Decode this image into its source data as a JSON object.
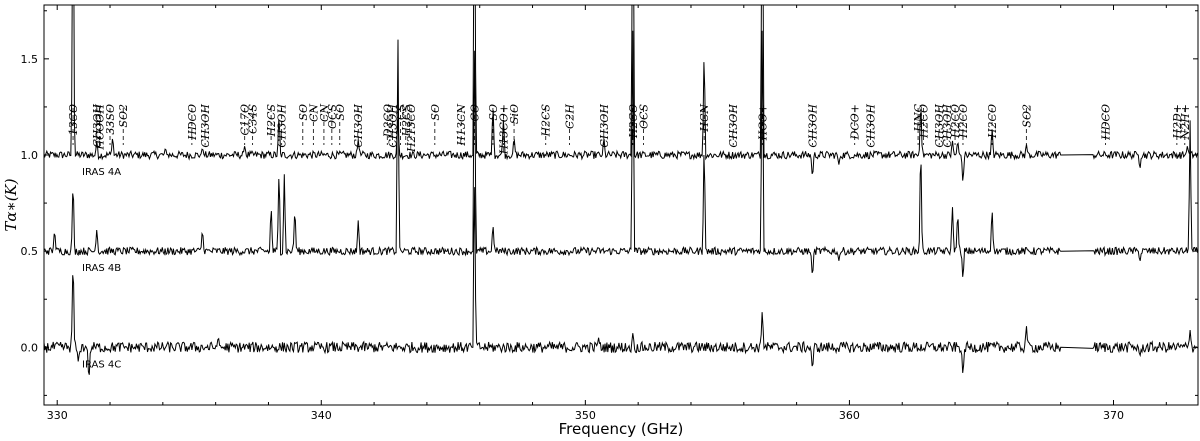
{
  "chart_data": {
    "type": "line",
    "xlabel": "Frequency (GHz)",
    "ylabel": "Tα∗(K)",
    "xlim": [
      329.5,
      373.2
    ],
    "ylim": [
      -0.3,
      1.78
    ],
    "x_ticks": [
      "330",
      "340",
      "350",
      "360",
      "370"
    ],
    "x_tick_values": [
      330,
      340,
      350,
      360,
      370
    ],
    "y_ticks": [
      "0.0",
      "0.5",
      "1.0",
      "1.5"
    ],
    "y_tick_values": [
      0.0,
      0.5,
      1.0,
      1.5
    ],
    "grid": false,
    "series": [
      {
        "name": "IRAS 4A",
        "baseline": 1.0,
        "peaks": [
          [
            330.6,
            1.78
          ],
          [
            331.5,
            0.08
          ],
          [
            332.1,
            0.1
          ],
          [
            334.1,
            0.04
          ],
          [
            335.5,
            0.04
          ],
          [
            337.1,
            0.05
          ],
          [
            338.4,
            0.22
          ],
          [
            341.4,
            0.08
          ],
          [
            342.9,
            0.2
          ],
          [
            345.8,
            1.78
          ],
          [
            346.5,
            0.28
          ],
          [
            346.9,
            0.2
          ],
          [
            347.3,
            0.1
          ],
          [
            350.7,
            0.1
          ],
          [
            351.8,
            1.78
          ],
          [
            354.5,
            0.58
          ],
          [
            356.7,
            1.78
          ],
          [
            358.6,
            0.06
          ],
          [
            358.6,
            -0.13
          ],
          [
            359.6,
            -0.05
          ],
          [
            362.7,
            0.3
          ],
          [
            363.9,
            0.08
          ],
          [
            364.1,
            0.08
          ],
          [
            364.3,
            -0.16
          ],
          [
            365.4,
            0.15
          ],
          [
            366.7,
            0.06
          ],
          [
            371.0,
            -0.08
          ],
          [
            372.8,
            0.05
          ]
        ]
      },
      {
        "name": "IRAS 4B",
        "baseline": 0.5,
        "peaks": [
          [
            329.9,
            0.12
          ],
          [
            330.6,
            0.4
          ],
          [
            331.5,
            0.12
          ],
          [
            335.5,
            0.12
          ],
          [
            338.1,
            0.25
          ],
          [
            338.4,
            0.45
          ],
          [
            338.6,
            0.4
          ],
          [
            339.0,
            0.24
          ],
          [
            341.4,
            0.16
          ],
          [
            342.9,
            1.2
          ],
          [
            345.8,
            1.25
          ],
          [
            346.5,
            0.15
          ],
          [
            351.8,
            1.25
          ],
          [
            354.5,
            0.6
          ],
          [
            356.7,
            1.25
          ],
          [
            358.6,
            -0.15
          ],
          [
            359.6,
            -0.05
          ],
          [
            362.7,
            0.6
          ],
          [
            363.9,
            0.25
          ],
          [
            364.1,
            0.22
          ],
          [
            364.3,
            -0.16
          ],
          [
            365.4,
            0.24
          ],
          [
            371.0,
            -0.06
          ],
          [
            372.9,
            0.68
          ]
        ]
      },
      {
        "name": "IRAS 4C",
        "baseline": 0.0,
        "peaks": [
          [
            330.6,
            0.5
          ],
          [
            330.8,
            -0.08
          ],
          [
            331.2,
            -0.19
          ],
          [
            336.1,
            0.06
          ],
          [
            345.8,
            1.0
          ],
          [
            350.5,
            0.05
          ],
          [
            351.8,
            0.08
          ],
          [
            356.7,
            0.2
          ],
          [
            358.6,
            -0.13
          ],
          [
            364.3,
            -0.16
          ],
          [
            366.7,
            0.12
          ],
          [
            371.0,
            -0.05
          ],
          [
            372.9,
            0.09
          ]
        ]
      }
    ],
    "gap": [
      368.0,
      369.2
    ],
    "sources": [
      "IRAS 4A",
      "IRAS 4B",
      "IRAS 4C"
    ],
    "annotations": [
      {
        "label": "13CO",
        "x": 330.6
      },
      {
        "label": "CH3OH",
        "x": 331.5
      },
      {
        "label": "HCOOH",
        "x": 331.6
      },
      {
        "label": "33SO",
        "x": 332.0
      },
      {
        "label": "SO2",
        "x": 332.5
      },
      {
        "label": "HDCO",
        "x": 335.1
      },
      {
        "label": "CH3OH",
        "x": 335.6
      },
      {
        "label": "C17O",
        "x": 337.1
      },
      {
        "label": "C34S",
        "x": 337.4
      },
      {
        "label": "H2CS",
        "x": 338.1
      },
      {
        "label": "CH3OH",
        "x": 338.5
      },
      {
        "label": "SO",
        "x": 339.3
      },
      {
        "label": "CN",
        "x": 339.7
      },
      {
        "label": "CN",
        "x": 340.1
      },
      {
        "label": "OCS",
        "x": 340.4
      },
      {
        "label": "SO",
        "x": 340.7
      },
      {
        "label": "CH3OH",
        "x": 341.4
      },
      {
        "label": "D2CO",
        "x": 342.5
      },
      {
        "label": "CH3OH",
        "x": 342.7
      },
      {
        "label": "CS",
        "x": 343.0
      },
      {
        "label": "H2CS",
        "x": 343.2
      },
      {
        "label": "H213CO",
        "x": 343.4
      },
      {
        "label": "SO",
        "x": 344.3
      },
      {
        "label": "H13CN",
        "x": 345.3
      },
      {
        "label": "CO",
        "x": 345.8
      },
      {
        "label": "SO",
        "x": 346.5
      },
      {
        "label": "H13CO+",
        "x": 346.9
      },
      {
        "label": "SiO",
        "x": 347.3
      },
      {
        "label": "H2CS",
        "x": 348.5
      },
      {
        "label": "C2H",
        "x": 349.4
      },
      {
        "label": "CH3OH",
        "x": 350.7
      },
      {
        "label": "H2CO",
        "x": 351.8
      },
      {
        "label": "OCS",
        "x": 352.2
      },
      {
        "label": "HCN",
        "x": 354.5
      },
      {
        "label": "CH3OH",
        "x": 355.6
      },
      {
        "label": "HCO+",
        "x": 356.7
      },
      {
        "label": "CH3OH",
        "x": 358.6
      },
      {
        "label": "DCO+",
        "x": 360.2
      },
      {
        "label": "CH3OH",
        "x": 360.8
      },
      {
        "label": "HNC",
        "x": 362.6
      },
      {
        "label": "H2CO",
        "x": 362.8
      },
      {
        "label": "CH3OH",
        "x": 363.4
      },
      {
        "label": "CH3OH",
        "x": 363.7
      },
      {
        "label": "H2CO",
        "x": 364.0
      },
      {
        "label": "H2CO",
        "x": 364.3
      },
      {
        "label": "H2CO",
        "x": 365.4
      },
      {
        "label": "SO2",
        "x": 366.7
      },
      {
        "label": "HDCO",
        "x": 369.7
      },
      {
        "label": "H2D+",
        "x": 372.4
      },
      {
        "label": "N2H+",
        "x": 372.7
      }
    ]
  }
}
